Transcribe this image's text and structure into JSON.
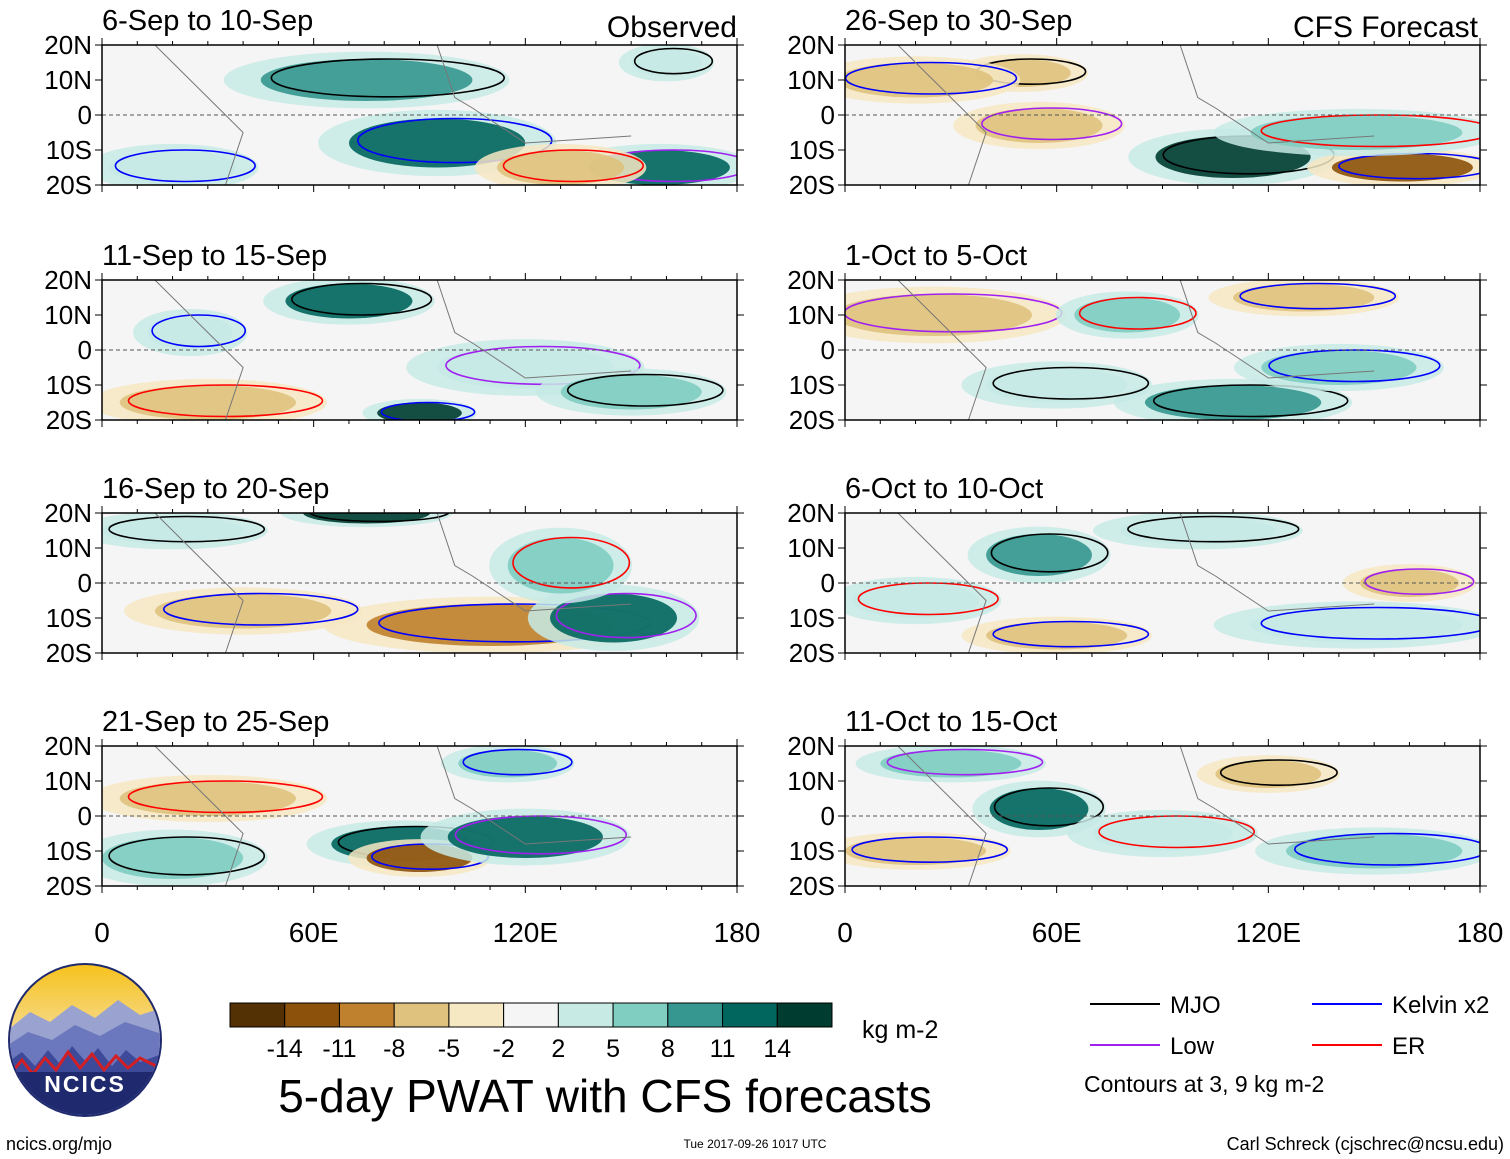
{
  "title": "5-day PWAT with CFS forecasts",
  "headers": {
    "observed": "Observed",
    "forecast": "CFS Forecast"
  },
  "chart_data": {
    "type": "heatmap",
    "variable": "5-day PWAT anomaly",
    "x_axis": {
      "range": [
        0,
        180
      ],
      "tick_labels": [
        "0",
        "60E",
        "120E",
        "180"
      ]
    },
    "y_axis": {
      "range": [
        -20,
        20
      ],
      "tick_labels": [
        "20N",
        "10N",
        "0",
        "10S",
        "20S"
      ]
    },
    "colorbar": {
      "unit": "kg m-2",
      "ticks": [
        "-14",
        "-11",
        "-8",
        "-5",
        "-2",
        "2",
        "5",
        "8",
        "11",
        "14"
      ],
      "colors": [
        "#543005",
        "#8c510a",
        "#bf812d",
        "#dfc27d",
        "#f6e8c3",
        "#f5f5f5",
        "#c7eae5",
        "#80cdc1",
        "#35978f",
        "#01665e",
        "#003c30"
      ]
    },
    "legend": {
      "items": [
        {
          "label": "MJO",
          "color": "#000000"
        },
        {
          "label": "Kelvin x2",
          "color": "#0000ff"
        },
        {
          "label": "Low",
          "color": "#a020f0"
        },
        {
          "label": "ER",
          "color": "#ff0000"
        }
      ],
      "note": "Contours at 3, 9 kg m-2"
    },
    "panels": [
      {
        "column": "observed",
        "period": "6-Sep to 10-Sep"
      },
      {
        "column": "observed",
        "period": "11-Sep to 15-Sep"
      },
      {
        "column": "observed",
        "period": "16-Sep to 20-Sep"
      },
      {
        "column": "observed",
        "period": "21-Sep to 25-Sep"
      },
      {
        "column": "forecast",
        "period": "26-Sep to 30-Sep"
      },
      {
        "column": "forecast",
        "period": "1-Oct to 5-Oct"
      },
      {
        "column": "forecast",
        "period": "6-Oct to 10-Oct"
      },
      {
        "column": "forecast",
        "period": "11-Oct to 15-Oct"
      }
    ]
  },
  "footer": {
    "url": "ncics.org/mjo",
    "timestamp": "Tue 2017-09-26 1017 UTC",
    "credit": "Carl Schreck (cjschrec@ncsu.edu)",
    "logo_text": "NCICS"
  }
}
